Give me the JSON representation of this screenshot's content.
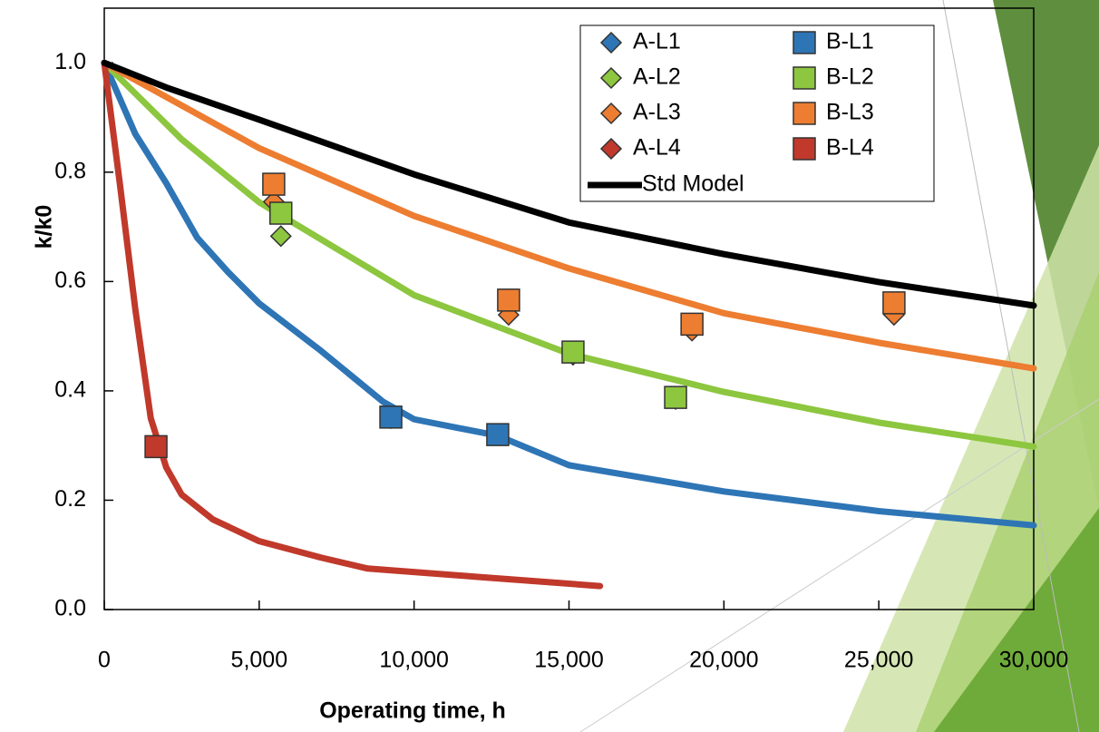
{
  "chart_data": {
    "type": "scatter",
    "xlabel": "Operating time, h",
    "ylabel": "k/k0",
    "xlim": [
      0,
      30000
    ],
    "ylim": [
      0,
      1.1
    ],
    "xticks": [
      0,
      {
        "value": 5000,
        "label": "5,000"
      },
      {
        "value": 10000,
        "label": "10,000"
      },
      {
        "value": 15000,
        "label": "15,000"
      },
      {
        "value": 20000,
        "label": "20,000"
      },
      {
        "value": 25000,
        "label": "25,000"
      },
      {
        "value": 30000,
        "label": "30,000"
      }
    ],
    "yticks": [
      {
        "value": 0,
        "label": "0.0"
      },
      0.2,
      0.4,
      0.6,
      0.8,
      {
        "value": 1,
        "label": "1.0"
      }
    ],
    "legend": "top-right",
    "series": [
      {
        "name": "A-L1",
        "color": "#2e75b6",
        "marker": "diamond",
        "x": [
          9250,
          12700
        ],
        "values": [
          0.35,
          0.32
        ]
      },
      {
        "name": "A-L2",
        "color": "#8dc63f",
        "marker": "diamond",
        "x": [
          5700,
          15130,
          18440
        ],
        "values": [
          0.683,
          0.466,
          0.385
        ]
      },
      {
        "name": "A-L3",
        "color": "#ed7d31",
        "marker": "diamond",
        "x": [
          5470,
          13050,
          18970,
          25490
        ],
        "values": [
          0.746,
          0.539,
          0.51,
          0.539
        ]
      },
      {
        "name": "A-L4",
        "color": "#c0392b",
        "marker": "diamond",
        "x": [
          1670
        ],
        "values": [
          0.298
        ]
      },
      {
        "name": "B-L1",
        "color": "#2e75b6",
        "marker": "square",
        "x": [
          9250,
          12700
        ],
        "values": [
          0.352,
          0.32
        ]
      },
      {
        "name": "B-L2",
        "color": "#8dc63f",
        "marker": "square",
        "x": [
          5700,
          15130,
          18440
        ],
        "values": [
          0.725,
          0.471,
          0.388
        ]
      },
      {
        "name": "B-L3",
        "color": "#ed7d31",
        "marker": "square",
        "x": [
          5470,
          13050,
          18970,
          25490
        ],
        "values": [
          0.778,
          0.566,
          0.522,
          0.561
        ]
      },
      {
        "name": "B-L4",
        "color": "#c0392b",
        "marker": "square",
        "x": [
          1670
        ],
        "values": [
          0.298
        ]
      }
    ],
    "lines": [
      {
        "color": "#2e75b6",
        "x": [
          0,
          1000,
          2000,
          3000,
          4000,
          5000,
          7000,
          9000,
          10000,
          12700,
          15000,
          20000,
          25000,
          30000
        ],
        "values": [
          1,
          0.87,
          0.78,
          0.68,
          0.617,
          0.56,
          0.473,
          0.38,
          0.348,
          0.318,
          0.264,
          0.216,
          0.18,
          0.154
        ]
      },
      {
        "color": "#8dc63f",
        "x": [
          0,
          2500,
          5000,
          10000,
          15000,
          20000,
          25000,
          30000
        ],
        "values": [
          1,
          0.86,
          0.745,
          0.575,
          0.468,
          0.398,
          0.342,
          0.298
        ]
      },
      {
        "color": "#ed7d31",
        "x": [
          0,
          5000,
          10000,
          15000,
          20000,
          25000,
          30000
        ],
        "values": [
          1,
          0.844,
          0.72,
          0.624,
          0.542,
          0.488,
          0.441
        ]
      },
      {
        "color": "#c0392b",
        "x": [
          0,
          500,
          1000,
          1500,
          2000,
          2500,
          3500,
          5000,
          7000,
          8500,
          12000,
          16000
        ],
        "values": [
          1,
          0.78,
          0.55,
          0.35,
          0.26,
          0.21,
          0.165,
          0.125,
          0.095,
          0.075,
          0.06,
          0.043
        ]
      },
      {
        "name": "Std Model",
        "color": "#000000",
        "x": [
          0,
          2000,
          5000,
          10000,
          15000,
          20000,
          25000,
          30000
        ],
        "values": [
          1,
          0.955,
          0.896,
          0.796,
          0.708,
          0.65,
          0.599,
          0.556
        ]
      }
    ]
  }
}
